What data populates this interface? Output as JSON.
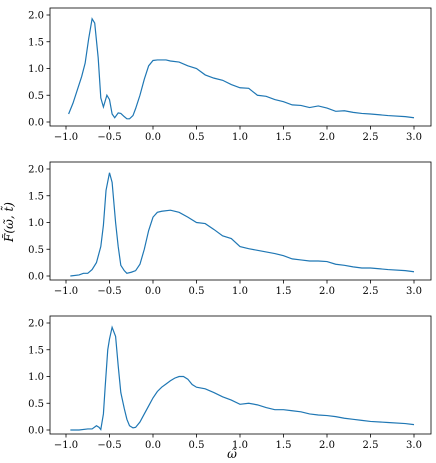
{
  "chart_data": [
    {
      "type": "line",
      "xlim": [
        -1.0,
        3.0
      ],
      "ylim": [
        0.0,
        2.0
      ],
      "xticks": [
        "−1.0",
        "−0.5",
        "0.0",
        "0.5",
        "1.0",
        "1.5",
        "2.0",
        "2.5",
        "3.0"
      ],
      "yticks": [
        "0.0",
        "0.5",
        "1.0",
        "1.5",
        "2.0"
      ],
      "series": [
        {
          "color": "#1f77b4",
          "x": [
            -0.97,
            -0.92,
            -0.87,
            -0.82,
            -0.78,
            -0.74,
            -0.7,
            -0.67,
            -0.63,
            -0.6,
            -0.57,
            -0.53,
            -0.5,
            -0.47,
            -0.44,
            -0.4,
            -0.37,
            -0.33,
            -0.3,
            -0.27,
            -0.23,
            -0.2,
            -0.15,
            -0.1,
            -0.05,
            0.0,
            0.05,
            0.1,
            0.15,
            0.2,
            0.3,
            0.4,
            0.5,
            0.6,
            0.7,
            0.8,
            0.9,
            1.0,
            1.1,
            1.2,
            1.3,
            1.4,
            1.5,
            1.6,
            1.7,
            1.8,
            1.9,
            2.0,
            2.1,
            2.2,
            2.3,
            2.4,
            2.5,
            2.7,
            2.9,
            3.0
          ],
          "y": [
            0.15,
            0.35,
            0.6,
            0.85,
            1.1,
            1.55,
            1.93,
            1.85,
            1.2,
            0.45,
            0.28,
            0.5,
            0.42,
            0.15,
            0.08,
            0.17,
            0.16,
            0.1,
            0.06,
            0.06,
            0.12,
            0.25,
            0.5,
            0.8,
            1.05,
            1.15,
            1.16,
            1.16,
            1.16,
            1.14,
            1.12,
            1.05,
            1.0,
            0.88,
            0.82,
            0.78,
            0.7,
            0.64,
            0.63,
            0.5,
            0.48,
            0.42,
            0.38,
            0.32,
            0.31,
            0.27,
            0.3,
            0.26,
            0.2,
            0.21,
            0.18,
            0.16,
            0.15,
            0.12,
            0.1,
            0.08
          ]
        }
      ]
    },
    {
      "type": "line",
      "xlim": [
        -1.0,
        3.0
      ],
      "ylim": [
        0.0,
        2.0
      ],
      "ylabel": "F̃(ω̃, t̃)",
      "xticks": [
        "−1.0",
        "−0.5",
        "0.0",
        "0.5",
        "1.0",
        "1.5",
        "2.0",
        "2.5",
        "3.0"
      ],
      "yticks": [
        "0.0",
        "0.5",
        "1.0",
        "1.5",
        "2.0"
      ],
      "series": [
        {
          "color": "#1f77b4",
          "x": [
            -0.95,
            -0.85,
            -0.8,
            -0.75,
            -0.7,
            -0.65,
            -0.6,
            -0.57,
            -0.54,
            -0.5,
            -0.47,
            -0.43,
            -0.4,
            -0.37,
            -0.33,
            -0.3,
            -0.25,
            -0.2,
            -0.15,
            -0.1,
            -0.05,
            0.0,
            0.05,
            0.1,
            0.2,
            0.3,
            0.4,
            0.5,
            0.6,
            0.7,
            0.8,
            0.9,
            1.0,
            1.1,
            1.2,
            1.3,
            1.4,
            1.5,
            1.6,
            1.7,
            1.8,
            1.9,
            2.0,
            2.1,
            2.2,
            2.3,
            2.4,
            2.5,
            2.7,
            2.9,
            3.0
          ],
          "y": [
            0.0,
            0.02,
            0.05,
            0.05,
            0.12,
            0.25,
            0.55,
            0.95,
            1.6,
            1.93,
            1.75,
            1.0,
            0.55,
            0.2,
            0.1,
            0.05,
            0.07,
            0.1,
            0.22,
            0.5,
            0.85,
            1.1,
            1.19,
            1.21,
            1.23,
            1.19,
            1.1,
            1.0,
            0.98,
            0.87,
            0.75,
            0.7,
            0.55,
            0.51,
            0.48,
            0.45,
            0.42,
            0.38,
            0.32,
            0.3,
            0.28,
            0.28,
            0.27,
            0.22,
            0.2,
            0.17,
            0.15,
            0.15,
            0.12,
            0.1,
            0.08
          ]
        }
      ]
    },
    {
      "type": "line",
      "xlim": [
        -1.0,
        3.0
      ],
      "ylim": [
        0.0,
        2.0
      ],
      "xlabel": "ω̃",
      "xticks": [
        "−1.0",
        "−0.5",
        "0.0",
        "0.5",
        "1.0",
        "1.5",
        "2.0",
        "2.5",
        "3.0"
      ],
      "yticks": [
        "0.0",
        "0.5",
        "1.0",
        "1.5",
        "2.0"
      ],
      "series": [
        {
          "color": "#1f77b4",
          "x": [
            -0.95,
            -0.85,
            -0.75,
            -0.7,
            -0.65,
            -0.62,
            -0.6,
            -0.57,
            -0.55,
            -0.52,
            -0.5,
            -0.47,
            -0.43,
            -0.4,
            -0.37,
            -0.33,
            -0.3,
            -0.27,
            -0.23,
            -0.2,
            -0.15,
            -0.1,
            -0.05,
            0.0,
            0.05,
            0.1,
            0.15,
            0.2,
            0.25,
            0.3,
            0.35,
            0.4,
            0.45,
            0.5,
            0.6,
            0.7,
            0.8,
            0.9,
            1.0,
            1.1,
            1.2,
            1.3,
            1.4,
            1.5,
            1.6,
            1.7,
            1.8,
            1.9,
            2.0,
            2.1,
            2.2,
            2.3,
            2.4,
            2.5,
            2.7,
            2.9,
            3.0
          ],
          "y": [
            0.0,
            0.0,
            0.02,
            0.02,
            0.08,
            0.05,
            0.01,
            0.3,
            0.8,
            1.5,
            1.7,
            1.92,
            1.75,
            1.2,
            0.7,
            0.4,
            0.2,
            0.08,
            0.04,
            0.05,
            0.15,
            0.3,
            0.45,
            0.6,
            0.72,
            0.8,
            0.86,
            0.92,
            0.97,
            1.0,
            1.0,
            0.95,
            0.85,
            0.8,
            0.77,
            0.7,
            0.62,
            0.56,
            0.48,
            0.5,
            0.47,
            0.42,
            0.38,
            0.38,
            0.36,
            0.34,
            0.3,
            0.28,
            0.27,
            0.25,
            0.22,
            0.2,
            0.18,
            0.16,
            0.14,
            0.12,
            0.1
          ]
        }
      ]
    }
  ]
}
